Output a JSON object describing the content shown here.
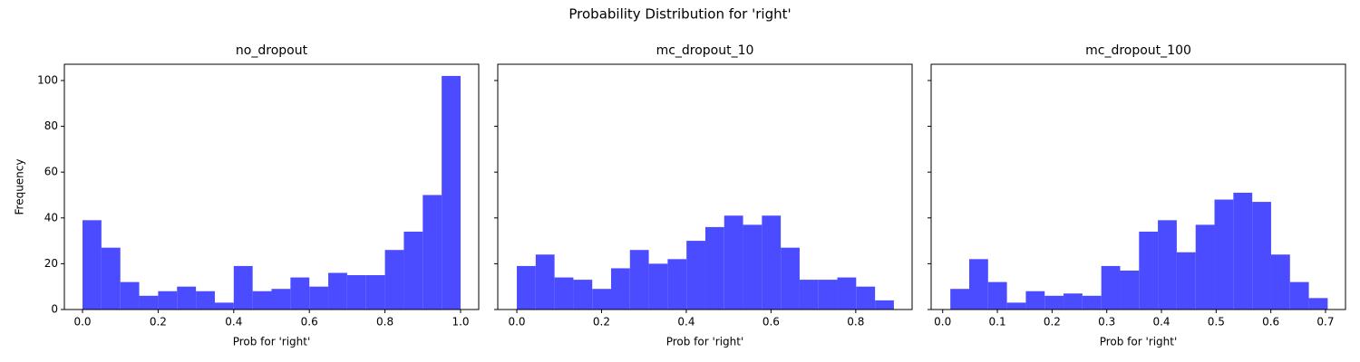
{
  "title": "Probability Distribution for 'right'",
  "chart_data": [
    {
      "type": "histogram",
      "title": "no_dropout",
      "xlabel": "Prob for 'right'",
      "ylabel": "Frequency",
      "color": "#4b4bff",
      "bins": [
        0,
        0.05,
        0.1,
        0.15,
        0.2,
        0.25,
        0.3,
        0.35,
        0.4,
        0.45,
        0.5,
        0.55,
        0.6,
        0.65,
        0.7,
        0.75,
        0.8,
        0.85,
        0.9,
        0.95,
        1.0
      ],
      "values": [
        39,
        27,
        12,
        6,
        8,
        10,
        8,
        3,
        19,
        8,
        9,
        14,
        10,
        16,
        15,
        15,
        26,
        34,
        50,
        102
      ],
      "xlim": [
        -0.048,
        1.048
      ],
      "xticks": [
        {
          "value": 0,
          "label": "0.0"
        },
        0.2,
        0.4,
        0.6,
        0.8,
        {
          "value": 1,
          "label": "1.0"
        }
      ],
      "ylim": [
        0,
        107.1
      ],
      "yticks": [
        0,
        20,
        40,
        60,
        80,
        100
      ]
    },
    {
      "type": "histogram",
      "title": "mc_dropout_10",
      "xlabel": "Prob for 'right'",
      "color": "#4b4bff",
      "bins": [
        0,
        0.0445,
        0.089,
        0.1335,
        0.178,
        0.2225,
        0.267,
        0.3115,
        0.356,
        0.4005,
        0.445,
        0.4895,
        0.534,
        0.5785,
        0.623,
        0.6675,
        0.712,
        0.7565,
        0.801,
        0.8455,
        0.89
      ],
      "values": [
        19,
        24,
        14,
        13,
        9,
        18,
        26,
        20,
        22,
        30,
        36,
        41,
        37,
        41,
        27,
        13,
        13,
        14,
        10,
        4
      ],
      "xlim": [
        -0.045,
        0.933
      ],
      "xticks": [
        {
          "value": 0,
          "label": "0.0"
        },
        0.2,
        0.4,
        0.6,
        0.8
      ]
    },
    {
      "type": "histogram",
      "title": "mc_dropout_100",
      "xlabel": "Prob for 'right'",
      "color": "#4b4bff",
      "bins": [
        0.014,
        0.0485,
        0.083,
        0.1175,
        0.152,
        0.1865,
        0.221,
        0.2555,
        0.29,
        0.3245,
        0.359,
        0.3935,
        0.428,
        0.4625,
        0.497,
        0.5315,
        0.566,
        0.6005,
        0.635,
        0.6695,
        0.704
      ],
      "values": [
        9,
        22,
        12,
        3,
        8,
        6,
        7,
        6,
        19,
        17,
        34,
        39,
        25,
        37,
        48,
        51,
        47,
        24,
        12,
        5
      ],
      "xlim": [
        -0.0211,
        0.7365
      ],
      "xticks": [
        {
          "value": 0,
          "label": "0.0"
        },
        0.1,
        0.2,
        0.3,
        0.4,
        0.5,
        0.6,
        0.7
      ]
    }
  ]
}
